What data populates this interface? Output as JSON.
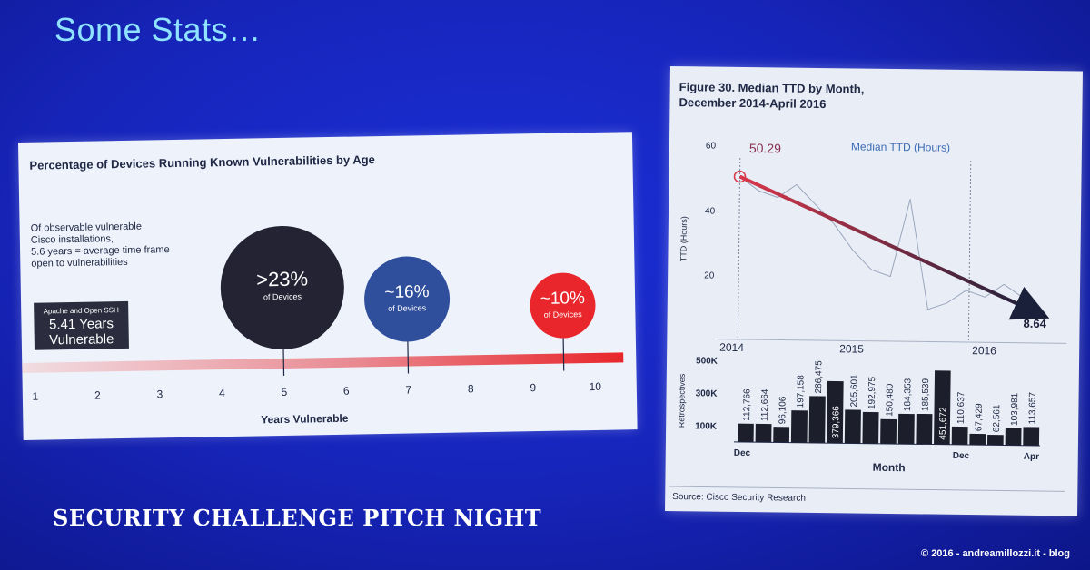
{
  "slide": {
    "title": "Some Stats…",
    "event_title": "SECURITY CHALLENGE PITCH NIGHT",
    "copyright": "© 2016 - andreamillozzi.it - blog"
  },
  "left_chart": {
    "title": "Percentage of Devices Running Known Vulnerabilities by Age",
    "note_lines": [
      "Of observable vulnerable",
      "Cisco installations,",
      "5.6 years = average time frame",
      "open to vulnerabilities"
    ],
    "box": {
      "line1": "Apache and Open SSH",
      "line2": "5.41 Years",
      "line3": "Vulnerable"
    },
    "xlabel": "Years Vulnerable",
    "ticks": [
      "1",
      "2",
      "3",
      "4",
      "5",
      "6",
      "7",
      "8",
      "9",
      "10"
    ],
    "bubbles": [
      {
        "value": ">23%",
        "sub": "of Devices",
        "year": 5,
        "color": "#232334"
      },
      {
        "value": "~16%",
        "sub": "of Devices",
        "year": 7,
        "color": "#2f4e9c"
      },
      {
        "value": "~10%",
        "sub": "of Devices",
        "year": 9.5,
        "color": "#e8262b"
      }
    ],
    "watermark": "andreamillozzi.it blog"
  },
  "chart_data": {
    "type": "line",
    "title": "Figure 30. Median TTD by Month, December 2014-April 2016",
    "legend": "Median TTD (Hours)",
    "ylabel": "TTD (Hours)",
    "yticks": [
      "60",
      "40",
      "20"
    ],
    "ylim": [
      0,
      60
    ],
    "start_label": "50.29",
    "end_label": "8.64",
    "year_labels": [
      "2014",
      "2015",
      "2016"
    ],
    "series": [
      {
        "name": "Median TTD (Hours)",
        "values": [
          50.29,
          46,
          44,
          48,
          42,
          36,
          28,
          22,
          20,
          44,
          10,
          12,
          16,
          14,
          18,
          14,
          8.64
        ]
      }
    ],
    "trend": {
      "from": 50.29,
      "to": 8.64
    },
    "bars": {
      "ylabel": "Retrospectives",
      "yticks": [
        "500K",
        "300K",
        "100K"
      ],
      "values": [
        112766,
        112664,
        96106,
        197158,
        286475,
        379366,
        205601,
        192975,
        150480,
        184353,
        185539,
        451672,
        110637,
        67429,
        62561,
        103981,
        113657
      ],
      "labels": [
        "112,766",
        "112,664",
        "96,106",
        "197,158",
        "286,475",
        "379,366",
        "205,601",
        "192,975",
        "150,480",
        "184,353",
        "185,539",
        "451,672",
        "110,637",
        "67,429",
        "62,561",
        "103,981",
        "113,657"
      ],
      "xticks": [
        "Dec",
        "Dec",
        "Apr"
      ],
      "xlabel": "Month"
    },
    "source": "Source: Cisco Security Research"
  },
  "colors": {
    "slide_bg": "#1624b8",
    "trend_start": "#d9374b",
    "trend_end": "#1a1f3a",
    "bars": "#1d1e2c"
  }
}
